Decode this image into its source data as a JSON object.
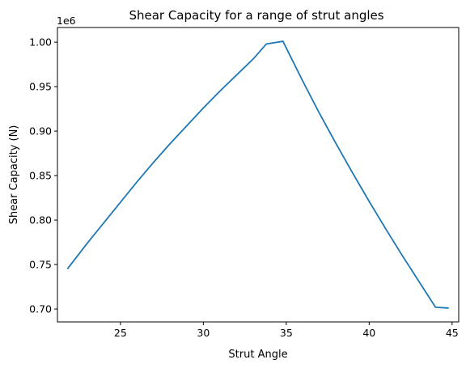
{
  "chart_data": {
    "type": "line",
    "title": "Shear Capacity for a range of strut angles",
    "xlabel": "Strut Angle",
    "ylabel": "Shear Capacity (N)",
    "y_offset_label": "1e6",
    "xlim": [
      21.2,
      45.4
    ],
    "ylim": [
      0.6855,
      1.0165
    ],
    "xticks": [
      25,
      30,
      35,
      40,
      45
    ],
    "xtick_labels": [
      "25",
      "30",
      "35",
      "40",
      "45"
    ],
    "yticks": [
      0.7,
      0.75,
      0.8,
      0.85,
      0.9,
      0.95,
      1.0
    ],
    "ytick_labels": [
      "0.70",
      "0.75",
      "0.80",
      "0.85",
      "0.90",
      "0.95",
      "1.00"
    ],
    "grid": false,
    "line_color": "#1f77b4",
    "series": [
      {
        "x": [
          21.8,
          23.0,
          24.0,
          25.0,
          26.0,
          27.0,
          28.0,
          29.0,
          30.0,
          31.0,
          32.0,
          33.0,
          33.8,
          34.8,
          36.0,
          37.0,
          38.0,
          39.0,
          40.0,
          41.0,
          42.0,
          43.0,
          44.0,
          44.8
        ],
        "y": [
          0.745,
          0.774,
          0.797,
          0.82,
          0.843,
          0.865,
          0.886,
          0.906,
          0.926,
          0.945,
          0.963,
          0.981,
          0.998,
          1.001,
          0.956,
          0.92,
          0.886,
          0.853,
          0.821,
          0.79,
          0.76,
          0.731,
          0.702,
          0.701
        ]
      }
    ]
  }
}
